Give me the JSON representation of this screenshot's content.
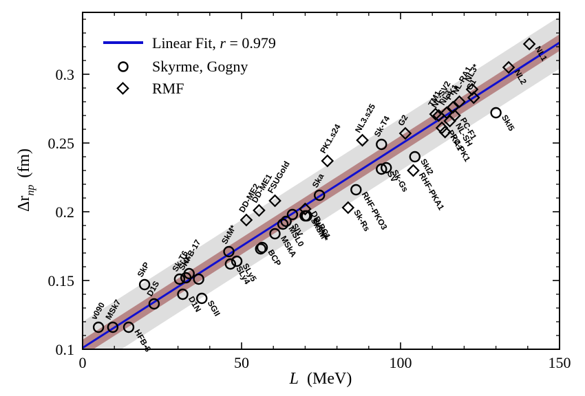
{
  "chart_data": {
    "type": "scatter",
    "xlabel_var": "L",
    "xlabel_unit": "(MeV)",
    "ylabel_var": "Δr",
    "ylabel_sub": "np",
    "ylabel_unit": "(fm)",
    "xlim": [
      0,
      150
    ],
    "ylim": [
      0.1,
      0.345
    ],
    "x_ticks": [
      0,
      50,
      100,
      150
    ],
    "y_ticks": [
      0.1,
      0.15,
      0.2,
      0.25,
      0.3
    ],
    "x_tick_labels": [
      "0",
      "50",
      "100",
      "150"
    ],
    "y_tick_labels": [
      "0.1",
      "0.15",
      "0.2",
      "0.25",
      "0.3"
    ],
    "fit": {
      "label_prefix": "Linear Fit, ",
      "label_r": "r",
      "label_suffix": " = 0.979",
      "intercept": 0.101,
      "slope": 0.00148,
      "color": "#1010d0",
      "inner_band_halfwidth": 0.006,
      "outer_band_halfwidth": 0.019,
      "inner_band_color": "#b07878",
      "outer_band_color": "#d8d8d8"
    },
    "legend": {
      "position": "top-left",
      "skyrme_label": "Skyrme, Gogny",
      "rmf_label": "RMF"
    },
    "series": [
      {
        "name": "Skyrme, Gogny",
        "marker": "circle",
        "points": [
          {
            "label": "v090",
            "x": 5,
            "y": 0.116
          },
          {
            "label": "MSk7",
            "x": 9.5,
            "y": 0.116
          },
          {
            "label": "HFB-8",
            "x": 14.5,
            "y": 0.116
          },
          {
            "label": "D1S",
            "x": 22.5,
            "y": 0.133
          },
          {
            "label": "SkP",
            "x": 19.5,
            "y": 0.147
          },
          {
            "label": "D1N",
            "x": 31.5,
            "y": 0.14
          },
          {
            "label": "HFB-17",
            "x": 33.5,
            "y": 0.155
          },
          {
            "label": "SkX",
            "x": 32.5,
            "y": 0.152
          },
          {
            "label": "Sk-T6",
            "x": 30.5,
            "y": 0.151
          },
          {
            "label": "SGII",
            "x": 37.5,
            "y": 0.137
          },
          {
            "label": "",
            "x": 36.5,
            "y": 0.151
          },
          {
            "label": "SkM*",
            "x": 46,
            "y": 0.171
          },
          {
            "label": "SLy4",
            "x": 46.5,
            "y": 0.162
          },
          {
            "label": "SLy5",
            "x": 48.5,
            "y": 0.164
          },
          {
            "label": "BCP",
            "x": 56.5,
            "y": 0.174
          },
          {
            "label": "",
            "x": 56,
            "y": 0.173
          },
          {
            "label": "MSkA",
            "x": 60.5,
            "y": 0.184
          },
          {
            "label": "MSL0",
            "x": 63,
            "y": 0.191
          },
          {
            "label": "SIV",
            "x": 64,
            "y": 0.193
          },
          {
            "label": "",
            "x": 66,
            "y": 0.198
          },
          {
            "label": "SkSM*",
            "x": 70,
            "y": 0.197
          },
          {
            "label": "SkMP",
            "x": 70.5,
            "y": 0.197
          },
          {
            "label": "Ska",
            "x": 74.5,
            "y": 0.212
          },
          {
            "label": "RHF-PKO3",
            "x": 86,
            "y": 0.216
          },
          {
            "label": "SkI2",
            "x": 104.5,
            "y": 0.24
          },
          {
            "label": "SV",
            "x": 94,
            "y": 0.231
          },
          {
            "label": "Sk-Gs",
            "x": 95.5,
            "y": 0.232
          },
          {
            "label": "Sk-T4",
            "x": 94,
            "y": 0.249
          },
          {
            "label": "SkI5",
            "x": 130,
            "y": 0.272
          }
        ]
      },
      {
        "name": "RMF",
        "marker": "diamond",
        "points": [
          {
            "label": "DD-ME2",
            "x": 51.5,
            "y": 0.194
          },
          {
            "label": "DD-ME1",
            "x": 55.5,
            "y": 0.201
          },
          {
            "label": "FSUGold",
            "x": 60.5,
            "y": 0.208
          },
          {
            "label": "DD-PC1",
            "x": 70,
            "y": 0.202
          },
          {
            "label": "PK1.s24",
            "x": 77,
            "y": 0.237
          },
          {
            "label": "Sk-Rs",
            "x": 83.5,
            "y": 0.203
          },
          {
            "label": "NL3.s25",
            "x": 88,
            "y": 0.252
          },
          {
            "label": "G2",
            "x": 101.5,
            "y": 0.257
          },
          {
            "label": "RHF-PKA1",
            "x": 104,
            "y": 0.23
          },
          {
            "label": "TM1",
            "x": 111,
            "y": 0.271
          },
          {
            "label": "NL-SV2",
            "x": 112,
            "y": 0.27
          },
          {
            "label": "PKA1",
            "x": 113,
            "y": 0.261
          },
          {
            "label": "PC-PK1",
            "x": 114,
            "y": 0.258
          },
          {
            "label": "NL3",
            "x": 114.5,
            "y": 0.272
          },
          {
            "label": "NL-SH",
            "x": 115.5,
            "y": 0.266
          },
          {
            "label": "PC-F1",
            "x": 117,
            "y": 0.27
          },
          {
            "label": "NL-RA1",
            "x": 118.5,
            "y": 0.28
          },
          {
            "label": "PK1",
            "x": 116.5,
            "y": 0.276
          },
          {
            "label": "NL3*",
            "x": 122.5,
            "y": 0.289
          },
          {
            "label": "G1",
            "x": 123,
            "y": 0.283
          },
          {
            "label": "NL2",
            "x": 134,
            "y": 0.305
          },
          {
            "label": "NL1",
            "x": 140.5,
            "y": 0.322
          }
        ]
      }
    ]
  }
}
